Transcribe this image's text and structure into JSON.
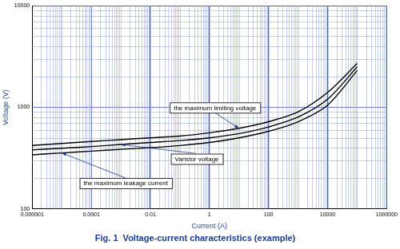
{
  "chart_data": {
    "type": "line",
    "title": "Fig. 1  Voltage-current characteristics (example)",
    "x_label": "Current (A)",
    "y_label": "Voltage (V)",
    "log": true,
    "grid": true,
    "marker": "none",
    "x": [
      1e-06,
      1e-05,
      0.0001,
      0.001,
      0.01,
      0.1,
      1,
      10,
      100,
      1000,
      10000,
      100000
    ],
    "series": [
      {
        "name": "the maximum limiting voltage",
        "color": "#000000",
        "values": [
          420,
          440,
          460,
          480,
          500,
          520,
          560,
          620,
          720,
          900,
          1400,
          2700
        ]
      },
      {
        "name": "Varistor voltage",
        "color": "#000000",
        "values": [
          380,
          395,
          410,
          430,
          450,
          470,
          500,
          550,
          640,
          800,
          1200,
          2500
        ]
      },
      {
        "name": "the maximum leakage current",
        "color": "#000000",
        "values": [
          340,
          355,
          370,
          385,
          400,
          420,
          450,
          500,
          580,
          720,
          1050,
          2300
        ]
      }
    ],
    "xlim": [
      1e-06,
      1000000
    ],
    "xticks": [
      1e-06,
      0.0001,
      0.01,
      1,
      100,
      10000,
      1000000
    ],
    "ylim": [
      100,
      10000
    ],
    "yticks": [
      100,
      1000,
      10000
    ]
  }
}
